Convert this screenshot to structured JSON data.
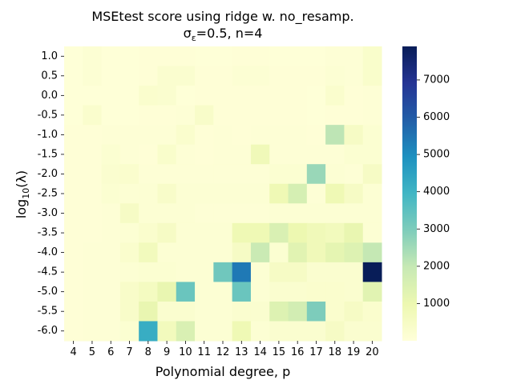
{
  "chart_data": {
    "type": "heatmap",
    "title_line1": "MSEtest score using ridge w. no_resamp.",
    "title_line2": "σε=0.5,  n=4",
    "xlabel": "Polynomial degree, p",
    "ylabel": "log10(λ)",
    "x_categories": [
      "4",
      "5",
      "6",
      "7",
      "8",
      "9",
      "10",
      "11",
      "12",
      "13",
      "14",
      "15",
      "16",
      "17",
      "18",
      "19",
      "20"
    ],
    "y_categories": [
      "1.0",
      "0.5",
      "0.0",
      "-0.5",
      "-1.0",
      "-1.5",
      "-2.0",
      "-2.5",
      "-3.0",
      "-3.5",
      "-4.0",
      "-4.5",
      "-5.0",
      "-5.5",
      "-6.0"
    ],
    "colormap": "YlGnBu",
    "vmin": 0,
    "vmax": 7900,
    "colorbar_ticks": [
      1000,
      2000,
      3000,
      4000,
      5000,
      6000,
      7000
    ],
    "values": [
      [
        60,
        150,
        60,
        60,
        80,
        80,
        80,
        60,
        60,
        80,
        80,
        60,
        60,
        60,
        100,
        100,
        350
      ],
      [
        60,
        150,
        60,
        60,
        80,
        250,
        250,
        80,
        80,
        150,
        150,
        80,
        80,
        80,
        150,
        100,
        350
      ],
      [
        60,
        60,
        60,
        60,
        300,
        250,
        60,
        80,
        80,
        80,
        80,
        80,
        80,
        60,
        300,
        80,
        100
      ],
      [
        60,
        300,
        60,
        60,
        80,
        80,
        100,
        400,
        80,
        80,
        80,
        80,
        80,
        60,
        80,
        80,
        100
      ],
      [
        80,
        80,
        100,
        100,
        100,
        100,
        300,
        80,
        100,
        80,
        100,
        100,
        100,
        80,
        2100,
        500,
        200
      ],
      [
        80,
        80,
        200,
        100,
        80,
        350,
        100,
        80,
        100,
        100,
        800,
        100,
        100,
        100,
        100,
        200,
        200
      ],
      [
        80,
        80,
        250,
        300,
        100,
        100,
        100,
        100,
        100,
        100,
        100,
        200,
        200,
        2600,
        150,
        100,
        500
      ],
      [
        80,
        80,
        200,
        150,
        150,
        400,
        150,
        150,
        150,
        150,
        150,
        900,
        1600,
        100,
        900,
        500,
        150
      ],
      [
        80,
        80,
        100,
        500,
        150,
        150,
        150,
        100,
        100,
        100,
        100,
        150,
        150,
        150,
        150,
        150,
        150
      ],
      [
        80,
        80,
        100,
        150,
        300,
        500,
        150,
        150,
        150,
        900,
        900,
        1500,
        1000,
        800,
        700,
        1100,
        150
      ],
      [
        80,
        100,
        100,
        300,
        700,
        150,
        150,
        150,
        150,
        500,
        1900,
        200,
        1300,
        800,
        1200,
        1400,
        2000
      ],
      [
        80,
        100,
        100,
        150,
        200,
        200,
        150,
        150,
        3200,
        5400,
        150,
        500,
        500,
        250,
        250,
        250,
        7900
      ],
      [
        80,
        100,
        100,
        400,
        600,
        1100,
        3300,
        150,
        150,
        3300,
        150,
        250,
        250,
        300,
        300,
        250,
        1300
      ],
      [
        80,
        100,
        100,
        400,
        1100,
        250,
        250,
        150,
        150,
        250,
        250,
        1400,
        1700,
        3000,
        300,
        500,
        300
      ],
      [
        80,
        100,
        100,
        200,
        4200,
        700,
        1500,
        150,
        150,
        900,
        150,
        250,
        250,
        250,
        500,
        250,
        250
      ]
    ]
  }
}
